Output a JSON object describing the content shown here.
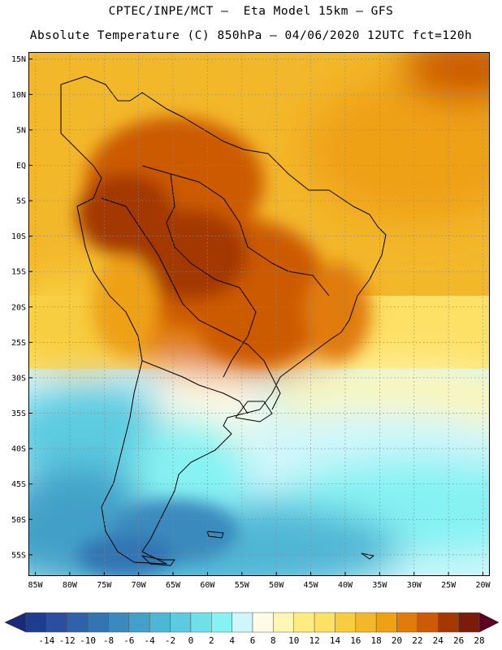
{
  "header": {
    "line1": "CPTEC/INPE/MCT –  Eta Model 15km – GFS",
    "line2": "Absolute Temperature (C) 850hPa – 04/06/2020 12UTC fct=120h"
  },
  "map": {
    "region": "South America",
    "lon_range": [
      -86,
      -19
    ],
    "lat_range": [
      -58,
      16
    ],
    "lat_labels": [
      "15N",
      "10N",
      "5N",
      "EQ",
      "5S",
      "10S",
      "15S",
      "20S",
      "25S",
      "30S",
      "35S",
      "40S",
      "45S",
      "50S",
      "55S"
    ],
    "lat_values": [
      15,
      10,
      5,
      0,
      -5,
      -10,
      -15,
      -20,
      -25,
      -30,
      -35,
      -40,
      -45,
      -50,
      -55
    ],
    "lon_labels": [
      "85W",
      "80W",
      "75W",
      "70W",
      "65W",
      "60W",
      "55W",
      "50W",
      "45W",
      "40W",
      "35W",
      "30W",
      "25W",
      "20W"
    ],
    "lon_values": [
      -85,
      -80,
      -75,
      -70,
      -65,
      -60,
      -55,
      -50,
      -45,
      -40,
      -35,
      -30,
      -25,
      -20
    ],
    "grid": "dotted",
    "field": "absolute temperature 850hPa (C)"
  },
  "colorbar": {
    "tick_labels": [
      "-14",
      "-12",
      "-10",
      "-8",
      "-6",
      "-4",
      "-2",
      "0",
      "2",
      "4",
      "6",
      "8",
      "10",
      "12",
      "14",
      "16",
      "18",
      "20",
      "22",
      "24",
      "26",
      "28"
    ],
    "colors": [
      "#1f3d8f",
      "#2b4f9e",
      "#2f62a8",
      "#3375b2",
      "#3a8abd",
      "#43a0c8",
      "#4fb6d4",
      "#5ccbe0",
      "#6fe0ea",
      "#86f2f3",
      "#cff6fb",
      "#fffbe6",
      "#fff6b3",
      "#ffec80",
      "#fde066",
      "#f7cd3f",
      "#f3b72a",
      "#efa116",
      "#e07b0c",
      "#cc5a06",
      "#a33803",
      "#7a1c0a"
    ],
    "low_arrow_color": "#1a2a78",
    "high_arrow_color": "#5a0024"
  }
}
